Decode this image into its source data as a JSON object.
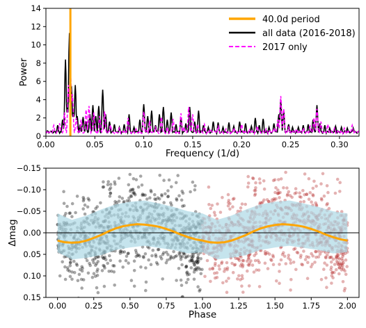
{
  "chart_data": [
    {
      "type": "line",
      "xlabel": "Frequency (1/d)",
      "ylabel": "Power",
      "xlim": [
        0.0,
        0.32
      ],
      "ylim": [
        0,
        14
      ],
      "xticks": [
        0.0,
        0.05,
        0.1,
        0.15,
        0.2,
        0.25,
        0.3
      ],
      "xtick_labels": [
        "0.00",
        "0.05",
        "0.10",
        "0.15",
        "0.20",
        "0.25",
        "0.30"
      ],
      "yticks": [
        0,
        2,
        4,
        6,
        8,
        10,
        12,
        14
      ],
      "ytick_labels": [
        "0",
        "2",
        "4",
        "6",
        "8",
        "10",
        "12",
        "14"
      ],
      "legend_position": "top-right",
      "vline": {
        "name": "40.0d period",
        "x": 0.025,
        "color": "#ffa500"
      },
      "series": [
        {
          "name": "all data (2016-2018)",
          "color": "#000000",
          "style": "solid",
          "peaks": [
            [
              0.012,
              1.2
            ],
            [
              0.017,
              1.8
            ],
            [
              0.02,
              8.4
            ],
            [
              0.022,
              3.2
            ],
            [
              0.024,
              11.3
            ],
            [
              0.026,
              5.5
            ],
            [
              0.028,
              2.6
            ],
            [
              0.03,
              5.6
            ],
            [
              0.032,
              2.2
            ],
            [
              0.035,
              1.3
            ],
            [
              0.038,
              2.1
            ],
            [
              0.041,
              1.6
            ],
            [
              0.045,
              2.4
            ],
            [
              0.048,
              3.4
            ],
            [
              0.051,
              2.2
            ],
            [
              0.054,
              3.3
            ],
            [
              0.058,
              5.1
            ],
            [
              0.061,
              2.4
            ],
            [
              0.065,
              1.6
            ],
            [
              0.07,
              1.3
            ],
            [
              0.075,
              1.0
            ],
            [
              0.08,
              1.3
            ],
            [
              0.085,
              2.4
            ],
            [
              0.09,
              1.0
            ],
            [
              0.096,
              1.8
            ],
            [
              0.1,
              3.5
            ],
            [
              0.104,
              2.2
            ],
            [
              0.108,
              2.8
            ],
            [
              0.112,
              1.2
            ],
            [
              0.116,
              2.4
            ],
            [
              0.12,
              3.2
            ],
            [
              0.124,
              1.8
            ],
            [
              0.128,
              2.6
            ],
            [
              0.133,
              1.3
            ],
            [
              0.138,
              2.0
            ],
            [
              0.143,
              1.4
            ],
            [
              0.147,
              3.2
            ],
            [
              0.152,
              1.6
            ],
            [
              0.156,
              2.8
            ],
            [
              0.161,
              1.2
            ],
            [
              0.166,
              1.0
            ],
            [
              0.171,
              1.6
            ],
            [
              0.176,
              1.5
            ],
            [
              0.181,
              1.0
            ],
            [
              0.187,
              1.5
            ],
            [
              0.192,
              1.1
            ],
            [
              0.198,
              1.6
            ],
            [
              0.204,
              1.4
            ],
            [
              0.21,
              1.1
            ],
            [
              0.214,
              2.0
            ],
            [
              0.218,
              1.2
            ],
            [
              0.222,
              1.9
            ],
            [
              0.228,
              1.0
            ],
            [
              0.233,
              1.4
            ],
            [
              0.238,
              2.4
            ],
            [
              0.24,
              4.0
            ],
            [
              0.243,
              2.8
            ],
            [
              0.248,
              1.3
            ],
            [
              0.252,
              1.0
            ],
            [
              0.258,
              1.0
            ],
            [
              0.263,
              1.2
            ],
            [
              0.268,
              1.3
            ],
            [
              0.273,
              1.8
            ],
            [
              0.277,
              3.4
            ],
            [
              0.28,
              1.4
            ],
            [
              0.285,
              1.2
            ],
            [
              0.29,
              0.9
            ],
            [
              0.296,
              1.1
            ],
            [
              0.302,
              1.0
            ],
            [
              0.308,
              0.9
            ],
            [
              0.314,
              0.9
            ]
          ]
        },
        {
          "name": "2017 only",
          "color": "#ff00ff",
          "style": "dashed",
          "peaks": [
            [
              0.008,
              1.2
            ],
            [
              0.014,
              1.4
            ],
            [
              0.019,
              2.6
            ],
            [
              0.023,
              5.6
            ],
            [
              0.025,
              7.4
            ],
            [
              0.027,
              4.6
            ],
            [
              0.031,
              2.0
            ],
            [
              0.036,
              1.8
            ],
            [
              0.041,
              2.9
            ],
            [
              0.044,
              3.3
            ],
            [
              0.049,
              2.6
            ],
            [
              0.055,
              2.2
            ],
            [
              0.06,
              2.7
            ],
            [
              0.066,
              1.2
            ],
            [
              0.075,
              0.9
            ],
            [
              0.084,
              2.0
            ],
            [
              0.092,
              0.8
            ],
            [
              0.1,
              2.7
            ],
            [
              0.106,
              1.7
            ],
            [
              0.112,
              1.0
            ],
            [
              0.118,
              2.1
            ],
            [
              0.124,
              1.0
            ],
            [
              0.13,
              1.9
            ],
            [
              0.138,
              2.5
            ],
            [
              0.141,
              1.0
            ],
            [
              0.146,
              3.2
            ],
            [
              0.15,
              2.4
            ],
            [
              0.155,
              1.3
            ],
            [
              0.162,
              1.3
            ],
            [
              0.168,
              0.8
            ],
            [
              0.176,
              1.1
            ],
            [
              0.184,
              0.8
            ],
            [
              0.192,
              0.9
            ],
            [
              0.2,
              1.3
            ],
            [
              0.208,
              0.8
            ],
            [
              0.216,
              1.1
            ],
            [
              0.225,
              0.8
            ],
            [
              0.233,
              0.9
            ],
            [
              0.237,
              1.8
            ],
            [
              0.24,
              4.4
            ],
            [
              0.243,
              3.0
            ],
            [
              0.248,
              1.0
            ],
            [
              0.256,
              0.8
            ],
            [
              0.263,
              0.9
            ],
            [
              0.27,
              1.1
            ],
            [
              0.274,
              2.0
            ],
            [
              0.277,
              3.0
            ],
            [
              0.281,
              1.6
            ],
            [
              0.288,
              1.3
            ],
            [
              0.295,
              0.9
            ],
            [
              0.305,
              0.9
            ],
            [
              0.313,
              1.2
            ]
          ]
        }
      ]
    },
    {
      "type": "scatter",
      "xlabel": "Phase",
      "ylabel": "Δmag",
      "xlim": [
        -0.08,
        2.08
      ],
      "ylim": [
        0.15,
        -0.15
      ],
      "y_inverted": true,
      "xticks": [
        0.0,
        0.25,
        0.5,
        0.75,
        1.0,
        1.25,
        1.5,
        1.75,
        2.0
      ],
      "xtick_labels": [
        "0.00",
        "0.25",
        "0.50",
        "0.75",
        "1.00",
        "1.25",
        "1.50",
        "1.75",
        "2.00"
      ],
      "yticks": [
        -0.15,
        -0.1,
        -0.05,
        0.0,
        0.05,
        0.1,
        0.15
      ],
      "ytick_labels": [
        "−0.15",
        "−0.10",
        "−0.05",
        "0.00",
        "0.05",
        "0.10",
        "0.15"
      ],
      "hline": {
        "y": 0.0,
        "color": "#000000"
      },
      "points_phase_0_1": {
        "color": "#000000",
        "alpha": 0.35,
        "x_range": [
          0.0,
          1.0
        ]
      },
      "points_phase_1_2": {
        "color": "#b22222",
        "alpha": 0.35,
        "x_range": [
          1.0,
          2.0
        ]
      },
      "band": {
        "color": "#add8e6",
        "phase": [
          0.0,
          0.1,
          0.2,
          0.3,
          0.4,
          0.5,
          0.6,
          0.7,
          0.8,
          0.9,
          1.0
        ],
        "upper": [
          0.045,
          0.062,
          0.058,
          0.052,
          0.04,
          0.034,
          0.03,
          0.035,
          0.04,
          0.048,
          0.045
        ],
        "lower": [
          -0.045,
          -0.03,
          -0.04,
          -0.054,
          -0.066,
          -0.072,
          -0.075,
          -0.068,
          -0.06,
          -0.05,
          -0.045
        ]
      },
      "model_curve": {
        "color": "#ffa500",
        "phase": [
          0.0,
          0.05,
          0.1,
          0.15,
          0.2,
          0.25,
          0.3,
          0.35,
          0.4,
          0.45,
          0.5,
          0.55,
          0.6,
          0.65,
          0.7,
          0.75,
          0.8,
          0.85,
          0.9,
          0.95,
          1.0
        ],
        "dmag": [
          0.018,
          0.022,
          0.023,
          0.022,
          0.018,
          0.012,
          0.005,
          -0.003,
          -0.01,
          -0.015,
          -0.018,
          -0.02,
          -0.019,
          -0.017,
          -0.014,
          -0.009,
          -0.003,
          0.004,
          0.01,
          0.015,
          0.018
        ]
      }
    }
  ]
}
